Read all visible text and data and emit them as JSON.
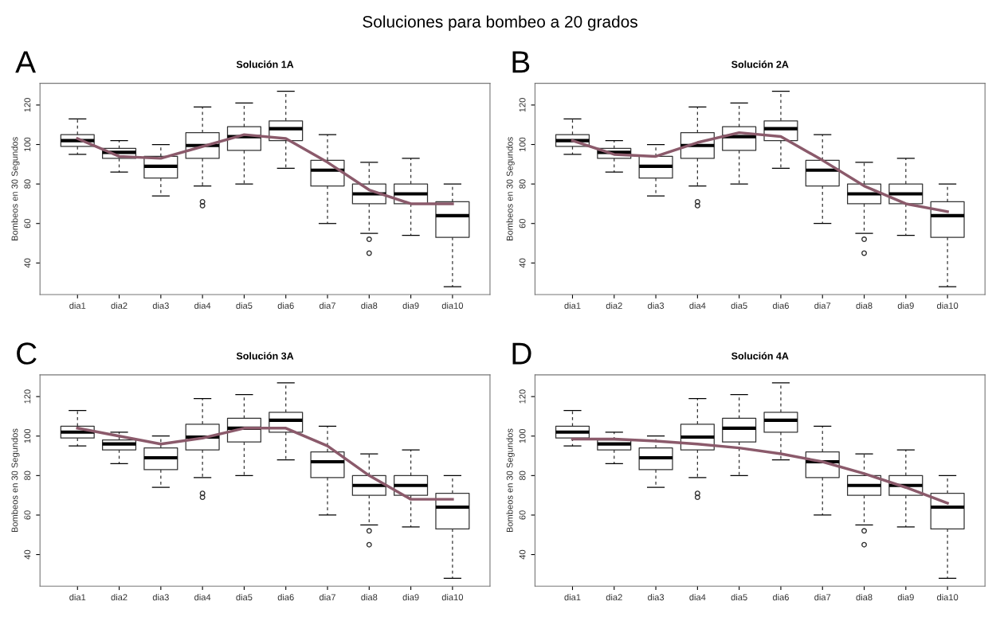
{
  "chart_data": [
    {
      "type": "box",
      "title": "Solución 1A",
      "ylabel": "Bombeos en 30 Segundos",
      "annotations": [
        "Soluciones para bombeo a 20 grados",
        "A"
      ],
      "categories": [
        "dia1",
        "dia2",
        "dia3",
        "dia4",
        "dia5",
        "dia6",
        "dia7",
        "dia8",
        "dia9",
        "dia10"
      ],
      "boxes": [
        {
          "low": 95,
          "q1": 99,
          "median": 102,
          "q3": 105,
          "high": 113
        },
        {
          "low": 86,
          "q1": 93,
          "median": 96,
          "q3": 98,
          "high": 102
        },
        {
          "low": 74,
          "q1": 83,
          "median": 89,
          "q3": 94,
          "high": 100
        },
        {
          "low": 79,
          "q1": 93,
          "median": 99.5,
          "q3": 106,
          "high": 119,
          "outliers": [
            71,
            69
          ]
        },
        {
          "low": 80,
          "q1": 97,
          "median": 104,
          "q3": 109,
          "high": 121
        },
        {
          "low": 88,
          "q1": 102,
          "median": 108,
          "q3": 112,
          "high": 127
        },
        {
          "low": 60,
          "q1": 79,
          "median": 87,
          "q3": 92,
          "high": 105
        },
        {
          "low": 55,
          "q1": 70,
          "median": 75,
          "q3": 80,
          "high": 91,
          "outliers": [
            52,
            45
          ]
        },
        {
          "low": 54,
          "q1": 70,
          "median": 75,
          "q3": 80,
          "high": 93
        },
        {
          "low": 28,
          "q1": 53,
          "median": 64,
          "q3": 71,
          "high": 80
        }
      ],
      "series": [
        {
          "type": "line",
          "color": "#8b5a6b",
          "values": [
            103,
            94,
            93,
            99,
            105,
            103,
            91,
            77,
            70,
            70
          ]
        }
      ],
      "ylim": [
        24,
        131
      ],
      "yticks": [
        40,
        60,
        80,
        100,
        120
      ],
      "grid": false
    },
    {
      "type": "box",
      "title": "Solución 2A",
      "ylabel": "Bombeos en 30 Segundos",
      "annotations": [
        "B"
      ],
      "categories": [
        "dia1",
        "dia2",
        "dia3",
        "dia4",
        "dia5",
        "dia6",
        "dia7",
        "dia8",
        "dia9",
        "dia10"
      ],
      "boxes": [
        {
          "low": 95,
          "q1": 99,
          "median": 102,
          "q3": 105,
          "high": 113
        },
        {
          "low": 86,
          "q1": 93,
          "median": 96,
          "q3": 98,
          "high": 102
        },
        {
          "low": 74,
          "q1": 83,
          "median": 89,
          "q3": 94,
          "high": 100
        },
        {
          "low": 79,
          "q1": 93,
          "median": 99.5,
          "q3": 106,
          "high": 119,
          "outliers": [
            71,
            69
          ]
        },
        {
          "low": 80,
          "q1": 97,
          "median": 104,
          "q3": 109,
          "high": 121
        },
        {
          "low": 88,
          "q1": 102,
          "median": 108,
          "q3": 112,
          "high": 127
        },
        {
          "low": 60,
          "q1": 79,
          "median": 87,
          "q3": 92,
          "high": 105
        },
        {
          "low": 55,
          "q1": 70,
          "median": 75,
          "q3": 80,
          "high": 91,
          "outliers": [
            52,
            45
          ]
        },
        {
          "low": 54,
          "q1": 70,
          "median": 75,
          "q3": 80,
          "high": 93
        },
        {
          "low": 28,
          "q1": 53,
          "median": 64,
          "q3": 71,
          "high": 80
        }
      ],
      "series": [
        {
          "type": "line",
          "color": "#8b5a6b",
          "values": [
            102,
            95,
            94,
            101,
            106,
            104,
            92,
            79,
            70,
            66
          ]
        }
      ],
      "ylim": [
        24,
        131
      ],
      "yticks": [
        40,
        60,
        80,
        100,
        120
      ],
      "grid": false
    },
    {
      "type": "box",
      "title": "Solución 3A",
      "ylabel": "Bombeos en 30 Segundos",
      "annotations": [
        "C"
      ],
      "categories": [
        "dia1",
        "dia2",
        "dia3",
        "dia4",
        "dia5",
        "dia6",
        "dia7",
        "dia8",
        "dia9",
        "dia10"
      ],
      "boxes": [
        {
          "low": 95,
          "q1": 99,
          "median": 102,
          "q3": 105,
          "high": 113
        },
        {
          "low": 86,
          "q1": 93,
          "median": 96,
          "q3": 98,
          "high": 102
        },
        {
          "low": 74,
          "q1": 83,
          "median": 89,
          "q3": 94,
          "high": 100
        },
        {
          "low": 79,
          "q1": 93,
          "median": 99.5,
          "q3": 106,
          "high": 119,
          "outliers": [
            71,
            69
          ]
        },
        {
          "low": 80,
          "q1": 97,
          "median": 104,
          "q3": 109,
          "high": 121
        },
        {
          "low": 88,
          "q1": 102,
          "median": 108,
          "q3": 112,
          "high": 127
        },
        {
          "low": 60,
          "q1": 79,
          "median": 87,
          "q3": 92,
          "high": 105
        },
        {
          "low": 55,
          "q1": 70,
          "median": 75,
          "q3": 80,
          "high": 91,
          "outliers": [
            52,
            45
          ]
        },
        {
          "low": 54,
          "q1": 70,
          "median": 75,
          "q3": 80,
          "high": 93
        },
        {
          "low": 28,
          "q1": 53,
          "median": 64,
          "q3": 71,
          "high": 80
        }
      ],
      "series": [
        {
          "type": "line",
          "color": "#8b5a6b",
          "values": [
            104,
            100,
            96,
            99,
            104,
            104,
            95,
            80,
            68,
            68
          ]
        }
      ],
      "ylim": [
        24,
        131
      ],
      "yticks": [
        40,
        60,
        80,
        100,
        120
      ],
      "grid": false
    },
    {
      "type": "box",
      "title": "Solución 4A",
      "ylabel": "Bombeos en 30 Segundos",
      "annotations": [
        "D"
      ],
      "categories": [
        "dia1",
        "dia2",
        "dia3",
        "dia4",
        "dia5",
        "dia6",
        "dia7",
        "dia8",
        "dia9",
        "dia10"
      ],
      "boxes": [
        {
          "low": 95,
          "q1": 99,
          "median": 102,
          "q3": 105,
          "high": 113
        },
        {
          "low": 86,
          "q1": 93,
          "median": 96,
          "q3": 98,
          "high": 102
        },
        {
          "low": 74,
          "q1": 83,
          "median": 89,
          "q3": 94,
          "high": 100
        },
        {
          "low": 79,
          "q1": 93,
          "median": 99.5,
          "q3": 106,
          "high": 119,
          "outliers": [
            71,
            69
          ]
        },
        {
          "low": 80,
          "q1": 97,
          "median": 104,
          "q3": 109,
          "high": 121
        },
        {
          "low": 88,
          "q1": 102,
          "median": 108,
          "q3": 112,
          "high": 127
        },
        {
          "low": 60,
          "q1": 79,
          "median": 87,
          "q3": 92,
          "high": 105
        },
        {
          "low": 55,
          "q1": 70,
          "median": 75,
          "q3": 80,
          "high": 91,
          "outliers": [
            52,
            45
          ]
        },
        {
          "low": 54,
          "q1": 70,
          "median": 75,
          "q3": 80,
          "high": 93
        },
        {
          "low": 28,
          "q1": 53,
          "median": 64,
          "q3": 71,
          "high": 80
        }
      ],
      "series": [
        {
          "type": "line",
          "color": "#8b5a6b",
          "values": [
            98.5,
            98.5,
            97.5,
            96,
            94,
            91,
            87,
            81,
            74,
            66
          ]
        }
      ],
      "ylim": [
        24,
        131
      ],
      "yticks": [
        40,
        60,
        80,
        100,
        120
      ],
      "grid": false
    }
  ]
}
